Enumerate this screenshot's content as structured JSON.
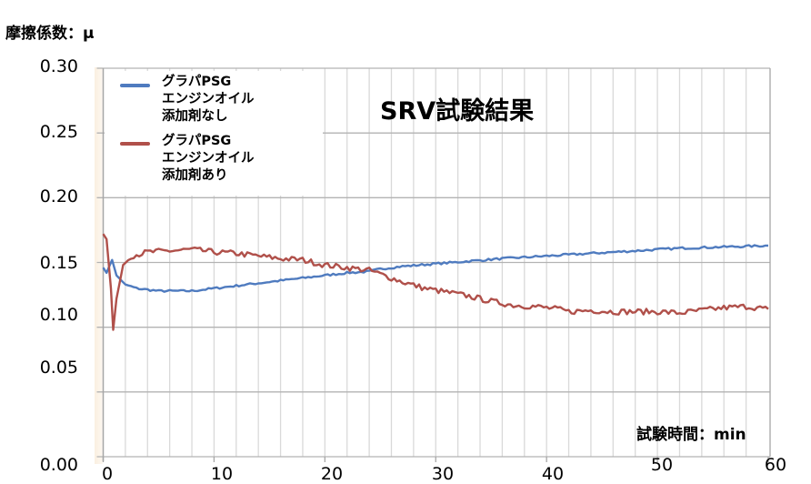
{
  "y_axis": {
    "title": "摩擦係数：μ",
    "ticks": [
      "0.30",
      "0.25",
      "0.20",
      "0.15",
      "0.10",
      "0.05",
      "0.00"
    ]
  },
  "x_axis": {
    "title": "試験時間：min",
    "ticks": [
      "0",
      "10",
      "20",
      "30",
      "40",
      "50",
      "60"
    ]
  },
  "chart": {
    "title": "SRV試験結果"
  },
  "legend": {
    "items": [
      {
        "label": "グラパPSG\nエンジンオイル\n添加剤なし",
        "color": "#4f7bbf"
      },
      {
        "label": "グラパPSG\nエンジンオイル\n添加剤あり",
        "color": "#b0504a"
      }
    ]
  },
  "chart_data": {
    "type": "line",
    "title": "SRV試験結果",
    "xlabel": "試験時間：min",
    "ylabel": "摩擦係数：μ",
    "xlim": [
      0,
      60
    ],
    "ylim": [
      0,
      0.3
    ],
    "x_ticks": [
      0,
      10,
      20,
      30,
      40,
      50,
      60
    ],
    "y_ticks": [
      0.0,
      0.05,
      0.1,
      0.15,
      0.2,
      0.25,
      0.3
    ],
    "grid": {
      "major_y": true,
      "minor_x_step": 2
    },
    "legend_position": "upper-left",
    "series": [
      {
        "name": "グラパPSG エンジンオイル 添加剤なし",
        "color": "#4f7bbf",
        "x": [
          0,
          0.3,
          0.6,
          0.8,
          1.2,
          2,
          3,
          5,
          8,
          10,
          12,
          14,
          16,
          18,
          20,
          22,
          24,
          25,
          27,
          30,
          33,
          36,
          40,
          44,
          48,
          52,
          56,
          60
        ],
        "y": [
          0.146,
          0.142,
          0.148,
          0.152,
          0.14,
          0.133,
          0.13,
          0.128,
          0.128,
          0.13,
          0.132,
          0.134,
          0.136,
          0.138,
          0.14,
          0.142,
          0.143,
          0.145,
          0.147,
          0.149,
          0.151,
          0.153,
          0.155,
          0.157,
          0.159,
          0.161,
          0.162,
          0.163
        ]
      },
      {
        "name": "グラパPSG エンジンオイル 添加剤あり",
        "color": "#b0504a",
        "x": [
          0,
          0.3,
          0.7,
          0.9,
          1.2,
          1.8,
          2.5,
          4,
          6,
          8,
          10,
          12,
          14,
          16,
          18,
          20,
          22,
          24,
          25,
          27,
          29,
          31,
          33,
          35,
          37,
          39,
          41,
          42,
          44,
          46,
          48,
          50,
          52,
          54,
          56,
          58,
          60
        ],
        "y": [
          0.172,
          0.168,
          0.13,
          0.098,
          0.122,
          0.148,
          0.155,
          0.158,
          0.159,
          0.16,
          0.158,
          0.157,
          0.155,
          0.153,
          0.152,
          0.148,
          0.146,
          0.144,
          0.141,
          0.135,
          0.13,
          0.127,
          0.124,
          0.12,
          0.117,
          0.116,
          0.114,
          0.112,
          0.113,
          0.112,
          0.112,
          0.112,
          0.111,
          0.113,
          0.115,
          0.116,
          0.114
        ]
      }
    ]
  }
}
